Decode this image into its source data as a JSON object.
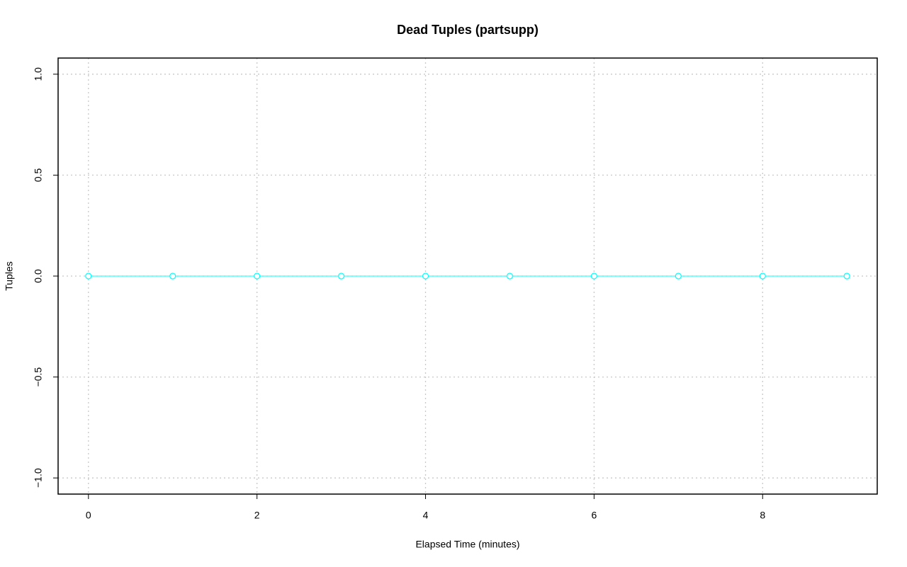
{
  "chart_data": {
    "type": "line",
    "title": "Dead Tuples (partsupp)",
    "x_label": "Elapsed Time (minutes)",
    "y_label": "Tuples",
    "x": [
      0,
      1,
      2,
      3,
      4,
      5,
      6,
      7,
      8,
      9
    ],
    "series": [
      {
        "name": "partsupp",
        "color": "#00ffff",
        "values": [
          0,
          0,
          0,
          0,
          0,
          0,
          0,
          0,
          0,
          0
        ]
      }
    ],
    "xlim": [
      -0.36,
      9.36
    ],
    "ylim": [
      -1.08,
      1.08
    ],
    "xticks": [
      0,
      2,
      4,
      6,
      8
    ],
    "yticks": [
      {
        "value": -1,
        "label": "−1.0"
      },
      {
        "value": -0.5,
        "label": "−0.5"
      },
      {
        "value": 0,
        "label": "0.0"
      },
      {
        "value": 0.5,
        "label": "0.5"
      },
      {
        "value": 1,
        "label": "1.0"
      }
    ],
    "grid": true
  }
}
